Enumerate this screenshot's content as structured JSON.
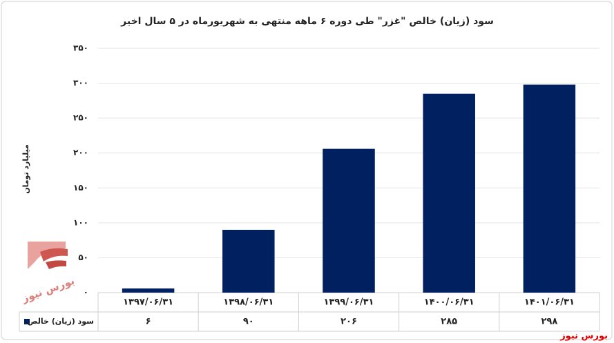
{
  "chart_data": {
    "type": "bar",
    "title": "سود (زیان) خالص \"غزر\" طی دوره ۶ ماهه منتهی به شهریورماه در ۵ سال اخیر",
    "y_label": "میلیارد تومان",
    "categories": [
      "۱۳۹۷/۰۶/۳۱",
      "۱۳۹۸/۰۶/۳۱",
      "۱۳۹۹/۰۶/۳۱",
      "۱۴۰۰/۰۶/۳۱",
      "۱۴۰۱/۰۶/۳۱"
    ],
    "series": [
      {
        "name": "سود (زیان) خالص",
        "color": "#002060",
        "values": [
          6,
          90,
          206,
          285,
          298
        ],
        "value_labels": [
          "۶",
          "۹۰",
          "۲۰۶",
          "۲۸۵",
          "۲۹۸"
        ]
      }
    ],
    "ylim": [
      0,
      350
    ],
    "yticks": [
      {
        "value": 0,
        "label": "۰"
      },
      {
        "value": 50,
        "label": "۵۰"
      },
      {
        "value": 100,
        "label": "۱۰۰"
      },
      {
        "value": 150,
        "label": "۱۵۰"
      },
      {
        "value": 200,
        "label": "۲۰۰"
      },
      {
        "value": 250,
        "label": "۲۵۰"
      },
      {
        "value": 300,
        "label": "۳۰۰"
      },
      {
        "value": 350,
        "label": "۳۵۰"
      }
    ],
    "grid": true,
    "logo_text": "بورس نیوز",
    "source": "بورس نیوز"
  }
}
